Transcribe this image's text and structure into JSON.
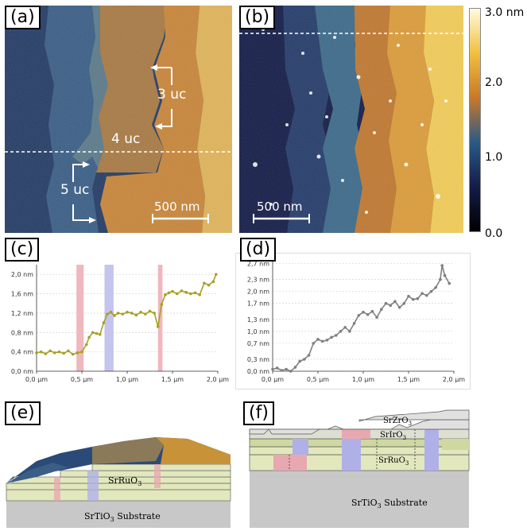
{
  "panels": {
    "a": {
      "label": "(a)",
      "annotations": [
        "3 uc",
        "4 uc",
        "5 uc"
      ],
      "scalebar": "500 nm"
    },
    "b": {
      "label": "(b)",
      "scalebar": "500 nm"
    },
    "colorbar": {
      "ticks": [
        "3.0 nm",
        "2.0",
        "1.0",
        "0.0"
      ],
      "colors": [
        "#fffbe0",
        "#f0c040",
        "#c8782a",
        "#2a5a86",
        "#141c48",
        "#000000"
      ]
    },
    "c": {
      "label": "(c)"
    },
    "d": {
      "label": "(d)"
    },
    "e": {
      "label": "(e)",
      "layer_label": "SrRuO",
      "layer_sub": "3",
      "substrate_label": "SrTiO",
      "substrate_sub": "3",
      "substrate_suffix": " Substrate"
    },
    "f": {
      "label": "(f)",
      "zr_label": "SrZrO",
      "zr_sub": "3",
      "ir_label": "SrIrO",
      "ir_sub": "3",
      "ru_label": "SrRuO",
      "ru_sub": "3",
      "substrate_label": "SrTiO",
      "substrate_sub": "3",
      "substrate_suffix": " Substrate"
    }
  },
  "chart_data": [
    {
      "type": "line",
      "panel": "c",
      "x_ticks": [
        "0,0 µm",
        "0,5 µm",
        "1,0 µm",
        "1,5 µm",
        "2,0 µm"
      ],
      "y_ticks": [
        "0,0 nm",
        "0,4 nm",
        "0,8 nm",
        "1,2 nm",
        "1,6 nm",
        "2,0 nm"
      ],
      "xlim": [
        0,
        2.0
      ],
      "ylim": [
        0,
        2.2
      ],
      "grid": true,
      "color": "#a8a024",
      "series": [
        {
          "x": [
            0.0,
            0.05,
            0.1,
            0.15,
            0.2,
            0.25,
            0.3,
            0.35,
            0.4,
            0.45,
            0.5,
            0.55,
            0.58,
            0.62,
            0.66,
            0.7,
            0.74,
            0.78,
            0.82,
            0.86,
            0.9,
            0.95,
            1.0,
            1.05,
            1.1,
            1.15,
            1.2,
            1.25,
            1.3,
            1.34,
            1.38,
            1.42,
            1.46,
            1.5,
            1.55,
            1.6,
            1.65,
            1.7,
            1.75,
            1.8,
            1.85,
            1.9,
            1.95,
            1.98
          ],
          "y": [
            0.38,
            0.4,
            0.36,
            0.42,
            0.38,
            0.4,
            0.37,
            0.42,
            0.35,
            0.38,
            0.4,
            0.55,
            0.7,
            0.8,
            0.78,
            0.76,
            1.0,
            1.18,
            1.22,
            1.15,
            1.2,
            1.18,
            1.22,
            1.2,
            1.16,
            1.22,
            1.18,
            1.24,
            1.2,
            0.92,
            1.38,
            1.58,
            1.62,
            1.65,
            1.6,
            1.66,
            1.63,
            1.6,
            1.62,
            1.58,
            1.82,
            1.78,
            1.85,
            2.0
          ]
        }
      ],
      "highlights": [
        {
          "x0": 0.44,
          "x1": 0.52,
          "color": "#e8a0a8"
        },
        {
          "x0": 0.75,
          "x1": 0.85,
          "color": "#b0b0e8"
        },
        {
          "x0": 1.34,
          "x1": 1.39,
          "color": "#e8a0a8"
        }
      ]
    },
    {
      "type": "line",
      "panel": "d",
      "x_ticks": [
        "0,0 µm",
        "0,5 µm",
        "1,0 µm",
        "1,5 µm",
        "2,0 µm"
      ],
      "y_ticks": [
        "0,0 nm",
        "0,3 nm",
        "0,7 nm",
        "1,0 nm",
        "1,3 nm",
        "1,7 nm",
        "2,0 nm",
        "2,3 nm",
        "2,7 nm"
      ],
      "xlim": [
        0,
        2.0
      ],
      "ylim": [
        0,
        2.75
      ],
      "grid": true,
      "color": "#808080",
      "series": [
        {
          "x": [
            0.0,
            0.05,
            0.1,
            0.15,
            0.2,
            0.25,
            0.3,
            0.35,
            0.4,
            0.45,
            0.5,
            0.55,
            0.6,
            0.65,
            0.7,
            0.75,
            0.8,
            0.85,
            0.9,
            0.95,
            1.0,
            1.05,
            1.1,
            1.15,
            1.2,
            1.25,
            1.3,
            1.35,
            1.4,
            1.45,
            1.5,
            1.55,
            1.6,
            1.65,
            1.7,
            1.75,
            1.8,
            1.85,
            1.87,
            1.9,
            1.95
          ],
          "y": [
            0.05,
            0.08,
            0.02,
            0.05,
            0.0,
            0.1,
            0.25,
            0.3,
            0.4,
            0.7,
            0.8,
            0.75,
            0.78,
            0.85,
            0.9,
            1.0,
            1.1,
            1.0,
            1.2,
            1.4,
            1.48,
            1.42,
            1.5,
            1.35,
            1.55,
            1.7,
            1.65,
            1.75,
            1.6,
            1.7,
            1.88,
            1.8,
            1.82,
            1.95,
            1.9,
            2.0,
            2.1,
            2.3,
            2.65,
            2.4,
            2.2
          ]
        }
      ]
    }
  ]
}
